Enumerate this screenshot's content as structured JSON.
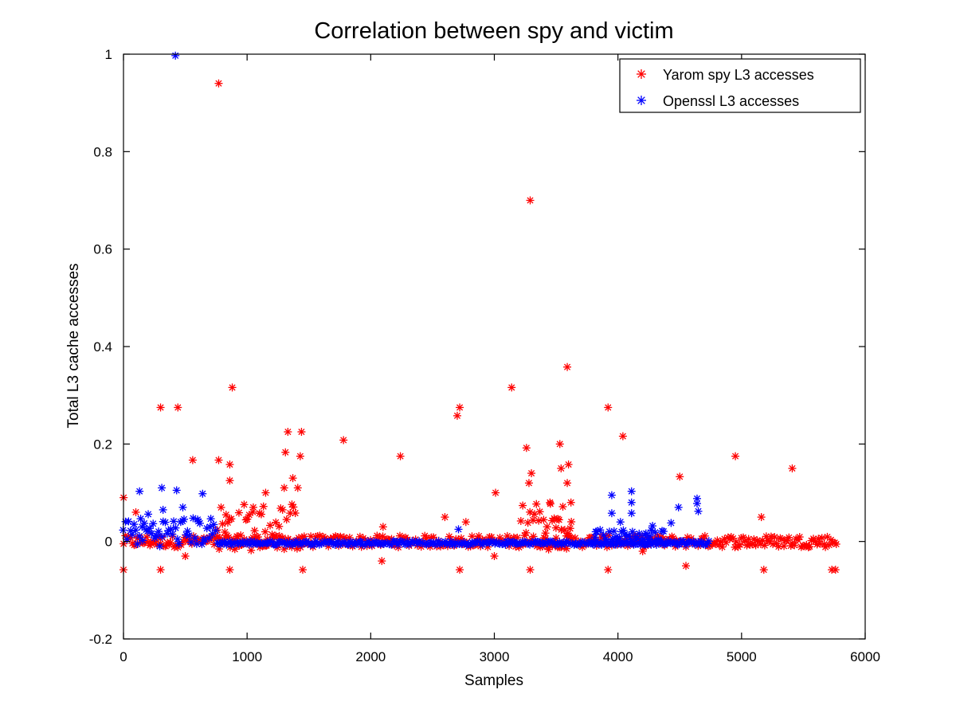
{
  "chart_data": {
    "type": "scatter",
    "title": "Correlation between spy and victim",
    "xlabel": "Samples",
    "ylabel": "Total L3 cache accesses",
    "xlim": [
      0,
      6000
    ],
    "ylim": [
      -0.2,
      1
    ],
    "x_ticks": [
      0,
      1000,
      2000,
      3000,
      4000,
      5000,
      6000
    ],
    "y_ticks": [
      -0.2,
      0,
      0.2,
      0.4,
      0.6,
      0.8,
      1
    ],
    "y_tick_labels": [
      "-0.2",
      "0",
      "0.2",
      "0.4",
      "0.6",
      "0.8",
      "1"
    ],
    "grid": false,
    "legend_position": "top-right",
    "marker": "asterisk",
    "series": [
      {
        "name": "Yarom spy L3 accesses",
        "color": "#ff0000",
        "points": [
          [
            770,
            0.94
          ],
          [
            3290,
            0.7
          ],
          [
            3590,
            0.358
          ],
          [
            880,
            0.316
          ],
          [
            3140,
            0.316
          ],
          [
            300,
            0.275
          ],
          [
            440,
            0.275
          ],
          [
            2720,
            0.275
          ],
          [
            3920,
            0.275
          ],
          [
            2700,
            0.258
          ],
          [
            1330,
            0.225
          ],
          [
            1440,
            0.225
          ],
          [
            4040,
            0.216
          ],
          [
            1780,
            0.208
          ],
          [
            3530,
            0.2
          ],
          [
            3260,
            0.192
          ],
          [
            1310,
            0.183
          ],
          [
            2240,
            0.175
          ],
          [
            4950,
            0.175
          ],
          [
            1430,
            0.175
          ],
          [
            560,
            0.167
          ],
          [
            770,
            0.167
          ],
          [
            860,
            0.158
          ],
          [
            3600,
            0.158
          ],
          [
            5410,
            0.15
          ],
          [
            3540,
            0.15
          ],
          [
            3300,
            0.14
          ],
          [
            4500,
            0.133
          ],
          [
            1370,
            0.13
          ],
          [
            860,
            0.125
          ],
          [
            3280,
            0.12
          ],
          [
            3590,
            0.12
          ],
          [
            1300,
            0.11
          ],
          [
            2600,
            0.05
          ],
          [
            3010,
            0.1
          ],
          [
            1150,
            0.1
          ],
          [
            1410,
            0.11
          ],
          [
            3450,
            0.08
          ],
          [
            5160,
            0.05
          ],
          [
            2770,
            0.04
          ],
          [
            1,
            0.09
          ],
          [
            100,
            0.06
          ],
          [
            2100,
            0.03
          ],
          [
            3620,
            0.08
          ],
          [
            1050,
            0.07
          ],
          [
            0,
            -0.058
          ],
          [
            300,
            -0.058
          ],
          [
            860,
            -0.058
          ],
          [
            1450,
            -0.058
          ],
          [
            2720,
            -0.058
          ],
          [
            3290,
            -0.058
          ],
          [
            3920,
            -0.058
          ],
          [
            5180,
            -0.058
          ],
          [
            5730,
            -0.058
          ],
          [
            5760,
            -0.058
          ],
          [
            4550,
            -0.05
          ],
          [
            2090,
            -0.04
          ],
          [
            500,
            -0.03
          ],
          [
            3000,
            -0.03
          ],
          [
            4200,
            -0.02
          ]
        ]
      },
      {
        "name": "Openssl L3 accesses",
        "color": "#0000ff",
        "points": [
          [
            420,
            0.997
          ],
          [
            310,
            0.11
          ],
          [
            430,
            0.105
          ],
          [
            130,
            0.103
          ],
          [
            4110,
            0.103
          ],
          [
            640,
            0.098
          ],
          [
            3950,
            0.095
          ],
          [
            4640,
            0.088
          ],
          [
            4110,
            0.08
          ],
          [
            4640,
            0.078
          ],
          [
            480,
            0.07
          ],
          [
            4490,
            0.07
          ],
          [
            320,
            0.065
          ],
          [
            4650,
            0.062
          ],
          [
            3950,
            0.058
          ],
          [
            4110,
            0.058
          ],
          [
            200,
            0.056
          ],
          [
            4020,
            0.04
          ],
          [
            4430,
            0.038
          ],
          [
            4280,
            0.032
          ],
          [
            2710,
            0.025
          ],
          [
            3820,
            0.02
          ],
          [
            150,
            0.03
          ],
          [
            600,
            0.045
          ],
          [
            700,
            0.03
          ]
        ]
      }
    ],
    "dense_bands": [
      {
        "series": 0,
        "x_start": 0,
        "x_end": 5780,
        "y_center": 0.0,
        "y_spread": 0.012
      },
      {
        "series": 0,
        "x_start": 760,
        "x_end": 1460,
        "y_center": 0.03,
        "y_spread": 0.05
      },
      {
        "series": 0,
        "x_start": 3200,
        "x_end": 3640,
        "y_center": 0.03,
        "y_spread": 0.05
      },
      {
        "series": 1,
        "x_start": 0,
        "x_end": 760,
        "y_center": 0.02,
        "y_spread": 0.03
      },
      {
        "series": 1,
        "x_start": 760,
        "x_end": 4750,
        "y_center": -0.003,
        "y_spread": 0.004
      },
      {
        "series": 1,
        "x_start": 3800,
        "x_end": 4400,
        "y_center": 0.01,
        "y_spread": 0.015
      }
    ]
  }
}
